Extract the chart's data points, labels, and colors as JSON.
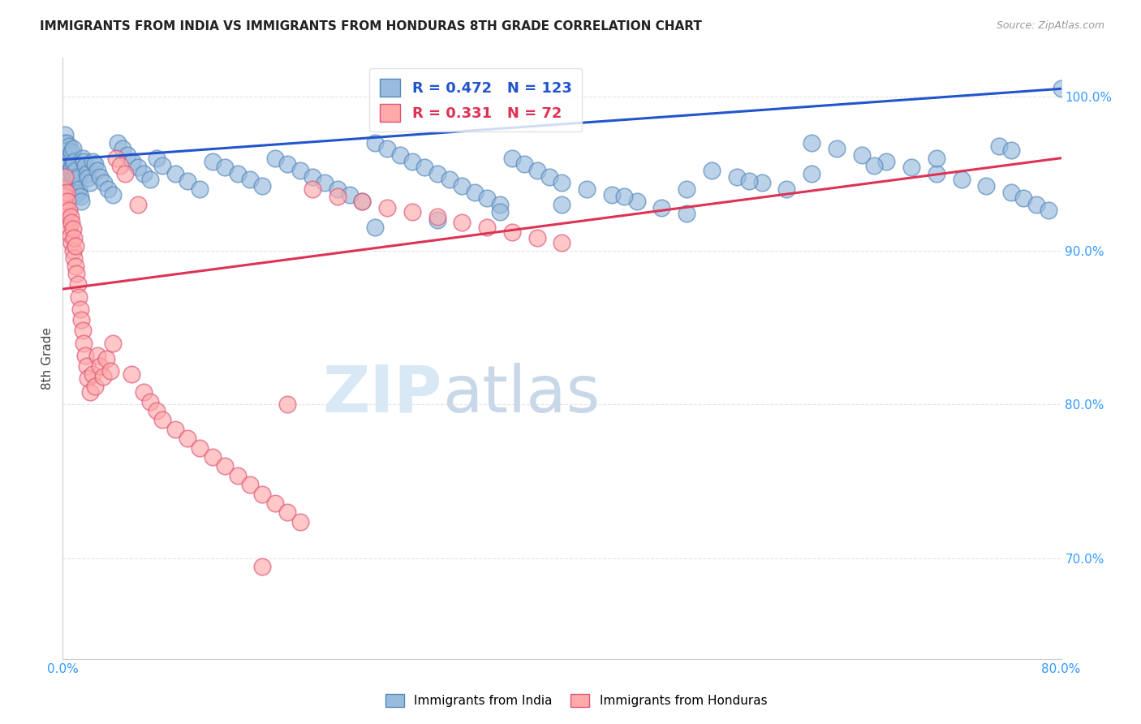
{
  "title": "IMMIGRANTS FROM INDIA VS IMMIGRANTS FROM HONDURAS 8TH GRADE CORRELATION CHART",
  "source": "Source: ZipAtlas.com",
  "ylabel": "8th Grade",
  "xlim": [
    0.0,
    0.8
  ],
  "ylim": [
    0.635,
    1.025
  ],
  "yticks": [
    0.7,
    0.8,
    0.9,
    1.0
  ],
  "ytick_labels": [
    "70.0%",
    "80.0%",
    "90.0%",
    "100.0%"
  ],
  "xticks": [
    0.0,
    0.1,
    0.2,
    0.3,
    0.4,
    0.5,
    0.6,
    0.7,
    0.8
  ],
  "xtick_labels": [
    "0.0%",
    "",
    "",
    "",
    "",
    "",
    "",
    "",
    "80.0%"
  ],
  "india_color": "#99BBDD",
  "india_edge_color": "#5588BB",
  "honduras_color": "#FFAAAA",
  "honduras_edge_color": "#DD5577",
  "india_line_color": "#2255CC",
  "honduras_line_color": "#DD3355",
  "india_R": 0.472,
  "india_N": 123,
  "honduras_R": 0.331,
  "honduras_N": 72,
  "background_color": "#FFFFFF",
  "grid_color": "#DDDDDD",
  "tick_color": "#3399FF",
  "india_scatter_x": [
    0.001,
    0.001,
    0.002,
    0.002,
    0.002,
    0.003,
    0.003,
    0.003,
    0.004,
    0.004,
    0.004,
    0.005,
    0.005,
    0.005,
    0.005,
    0.006,
    0.006,
    0.006,
    0.007,
    0.007,
    0.007,
    0.008,
    0.008,
    0.008,
    0.009,
    0.009,
    0.01,
    0.01,
    0.011,
    0.011,
    0.012,
    0.012,
    0.013,
    0.014,
    0.015,
    0.016,
    0.017,
    0.018,
    0.019,
    0.02,
    0.022,
    0.024,
    0.026,
    0.028,
    0.03,
    0.033,
    0.036,
    0.04,
    0.044,
    0.048,
    0.052,
    0.056,
    0.06,
    0.065,
    0.07,
    0.075,
    0.08,
    0.09,
    0.1,
    0.11,
    0.12,
    0.13,
    0.14,
    0.15,
    0.16,
    0.17,
    0.18,
    0.19,
    0.2,
    0.21,
    0.22,
    0.23,
    0.24,
    0.25,
    0.26,
    0.27,
    0.28,
    0.29,
    0.3,
    0.31,
    0.32,
    0.33,
    0.34,
    0.35,
    0.36,
    0.37,
    0.38,
    0.39,
    0.4,
    0.42,
    0.44,
    0.46,
    0.48,
    0.5,
    0.52,
    0.54,
    0.56,
    0.58,
    0.6,
    0.62,
    0.64,
    0.66,
    0.68,
    0.7,
    0.72,
    0.74,
    0.76,
    0.77,
    0.78,
    0.79,
    0.8,
    0.75,
    0.76,
    0.7,
    0.65,
    0.6,
    0.55,
    0.5,
    0.45,
    0.4,
    0.35,
    0.3,
    0.25
  ],
  "india_scatter_y": [
    0.96,
    0.97,
    0.955,
    0.965,
    0.975,
    0.95,
    0.96,
    0.97,
    0.945,
    0.955,
    0.965,
    0.94,
    0.95,
    0.958,
    0.968,
    0.942,
    0.952,
    0.962,
    0.944,
    0.954,
    0.964,
    0.946,
    0.956,
    0.966,
    0.948,
    0.958,
    0.942,
    0.952,
    0.936,
    0.946,
    0.938,
    0.948,
    0.94,
    0.935,
    0.932,
    0.96,
    0.958,
    0.955,
    0.95,
    0.947,
    0.944,
    0.958,
    0.956,
    0.952,
    0.948,
    0.944,
    0.94,
    0.936,
    0.97,
    0.966,
    0.962,
    0.958,
    0.954,
    0.95,
    0.946,
    0.96,
    0.955,
    0.95,
    0.945,
    0.94,
    0.958,
    0.954,
    0.95,
    0.946,
    0.942,
    0.96,
    0.956,
    0.952,
    0.948,
    0.944,
    0.94,
    0.936,
    0.932,
    0.97,
    0.966,
    0.962,
    0.958,
    0.954,
    0.95,
    0.946,
    0.942,
    0.938,
    0.934,
    0.93,
    0.96,
    0.956,
    0.952,
    0.948,
    0.944,
    0.94,
    0.936,
    0.932,
    0.928,
    0.924,
    0.952,
    0.948,
    0.944,
    0.94,
    0.97,
    0.966,
    0.962,
    0.958,
    0.954,
    0.95,
    0.946,
    0.942,
    0.938,
    0.934,
    0.93,
    0.926,
    1.005,
    0.968,
    0.965,
    0.96,
    0.955,
    0.95,
    0.945,
    0.94,
    0.935,
    0.93,
    0.925,
    0.92,
    0.915
  ],
  "honduras_scatter_x": [
    0.001,
    0.001,
    0.002,
    0.002,
    0.003,
    0.003,
    0.004,
    0.004,
    0.005,
    0.005,
    0.006,
    0.006,
    0.007,
    0.007,
    0.008,
    0.008,
    0.009,
    0.009,
    0.01,
    0.01,
    0.011,
    0.012,
    0.013,
    0.014,
    0.015,
    0.016,
    0.017,
    0.018,
    0.019,
    0.02,
    0.022,
    0.024,
    0.026,
    0.028,
    0.03,
    0.032,
    0.035,
    0.038,
    0.04,
    0.043,
    0.046,
    0.05,
    0.055,
    0.06,
    0.065,
    0.07,
    0.075,
    0.08,
    0.09,
    0.1,
    0.11,
    0.12,
    0.13,
    0.14,
    0.15,
    0.16,
    0.17,
    0.18,
    0.19,
    0.2,
    0.22,
    0.24,
    0.26,
    0.28,
    0.3,
    0.32,
    0.34,
    0.36,
    0.38,
    0.4,
    0.18,
    0.16
  ],
  "honduras_scatter_y": [
    0.94,
    0.93,
    0.948,
    0.935,
    0.925,
    0.938,
    0.92,
    0.932,
    0.915,
    0.926,
    0.91,
    0.922,
    0.905,
    0.918,
    0.9,
    0.914,
    0.895,
    0.908,
    0.89,
    0.903,
    0.885,
    0.878,
    0.87,
    0.862,
    0.855,
    0.848,
    0.84,
    0.832,
    0.825,
    0.817,
    0.808,
    0.82,
    0.812,
    0.832,
    0.825,
    0.818,
    0.83,
    0.822,
    0.84,
    0.96,
    0.955,
    0.95,
    0.82,
    0.93,
    0.808,
    0.802,
    0.796,
    0.79,
    0.784,
    0.778,
    0.772,
    0.766,
    0.76,
    0.754,
    0.748,
    0.742,
    0.736,
    0.73,
    0.724,
    0.94,
    0.935,
    0.932,
    0.928,
    0.925,
    0.922,
    0.918,
    0.915,
    0.912,
    0.908,
    0.905,
    0.8,
    0.695
  ]
}
